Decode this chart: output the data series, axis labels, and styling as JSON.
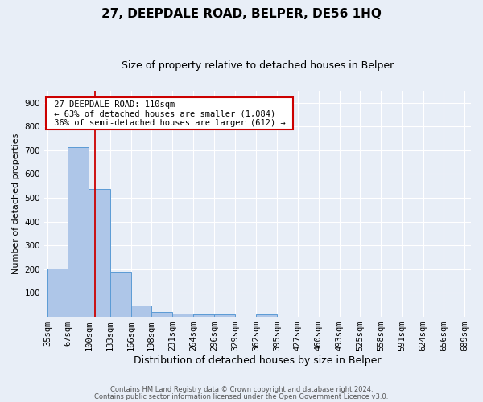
{
  "title": "27, DEEPDALE ROAD, BELPER, DE56 1HQ",
  "subtitle": "Size of property relative to detached houses in Belper",
  "xlabel": "Distribution of detached houses by size in Belper",
  "ylabel": "Number of detached properties",
  "footer1": "Contains HM Land Registry data © Crown copyright and database right 2024.",
  "footer2": "Contains public sector information licensed under the Open Government Licence v3.0.",
  "annotation_title": "27 DEEPDALE ROAD: 110sqm",
  "annotation_line2": "← 63% of detached houses are smaller (1,084)",
  "annotation_line3": "36% of semi-detached houses are larger (612) →",
  "property_size_sqm": 110,
  "bar_edges": [
    35,
    67,
    100,
    133,
    166,
    198,
    231,
    264,
    296,
    329,
    362,
    395,
    427,
    460,
    493,
    525,
    558,
    591,
    624,
    656,
    689
  ],
  "bar_heights": [
    202,
    714,
    537,
    191,
    47,
    21,
    15,
    12,
    9,
    0,
    9,
    0,
    0,
    0,
    0,
    0,
    0,
    0,
    0,
    0
  ],
  "bar_color": "#aec6e8",
  "bar_edge_color": "#5b9bd5",
  "vline_color": "#cc0000",
  "vline_x": 110,
  "annotation_box_color": "#ffffff",
  "annotation_box_edge": "#cc0000",
  "background_color": "#e8eef7",
  "ylim": [
    0,
    950
  ],
  "yticks": [
    100,
    200,
    300,
    400,
    500,
    600,
    700,
    800,
    900
  ],
  "grid_color": "#ffffff",
  "title_fontsize": 11,
  "subtitle_fontsize": 9,
  "axis_label_fontsize": 8,
  "tick_fontsize": 7.5,
  "annotation_fontsize": 7.5,
  "footer_fontsize": 6
}
